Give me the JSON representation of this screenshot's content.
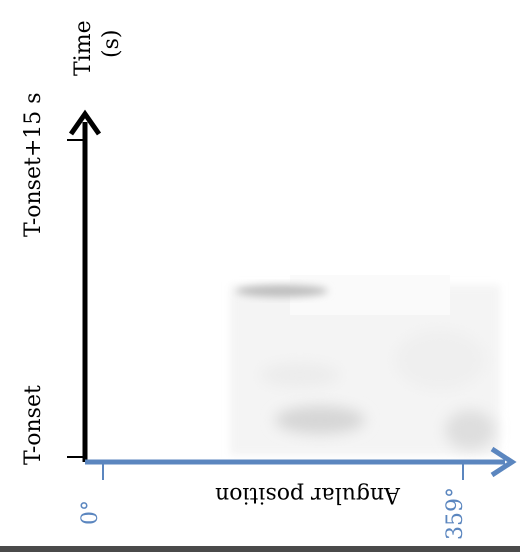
{
  "y_axis": {
    "label_line1": "Time",
    "label_line2": "(s)",
    "ticks": [
      "T-onset",
      "T-onset+15 s"
    ]
  },
  "x_axis": {
    "label": "Angular position",
    "ticks": [
      "0°",
      "359°"
    ]
  },
  "colors": {
    "time_axis": "#000000",
    "angle_axis": "#5b86bf",
    "angle_labels": "#5b86bf",
    "heatmap_bg": "#f3f3f3",
    "heatmap_dark": "#b8b8b8"
  }
}
